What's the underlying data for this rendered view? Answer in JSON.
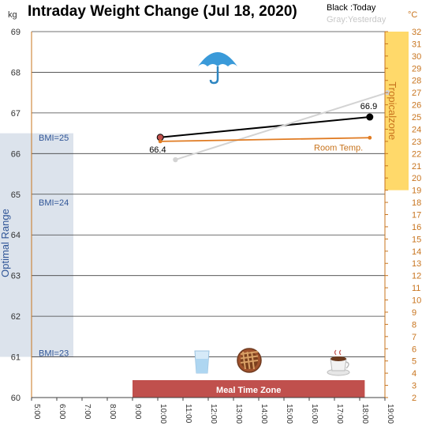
{
  "chart_data": {
    "type": "line",
    "title": "Intraday Weight Change (Jul 18, 2020)",
    "legend": {
      "today": "Black :Today",
      "yesterday": "Gray:Yesterday"
    },
    "y_left": {
      "unit": "kg",
      "min": 60,
      "max": 69,
      "ticks": [
        "60",
        "61",
        "62",
        "63",
        "64",
        "65",
        "66",
        "67",
        "68",
        "69"
      ]
    },
    "y_right": {
      "unit": "°C",
      "min": 2,
      "max": 32,
      "ticks": [
        "2",
        "3",
        "4",
        "5",
        "6",
        "7",
        "8",
        "9",
        "10",
        "11",
        "12",
        "13",
        "14",
        "15",
        "16",
        "17",
        "18",
        "19",
        "20",
        "21",
        "22",
        "23",
        "24",
        "25",
        "26",
        "27",
        "28",
        "29",
        "30",
        "31",
        "32"
      ]
    },
    "x": {
      "min": 5,
      "max": 19,
      "ticks": [
        "5:00",
        "6:00",
        "7:00",
        "8:00",
        "9:00",
        "10:00",
        "11:00",
        "12:00",
        "13:00",
        "14:00",
        "15:00",
        "16:00",
        "17:00",
        "18:00",
        "19:00"
      ]
    },
    "series": [
      {
        "name": "Today",
        "color": "#000000",
        "x": [
          10.1,
          18.4
        ],
        "y": [
          66.4,
          66.9
        ],
        "labels": [
          "66.4",
          "66.9"
        ]
      },
      {
        "name": "Yesterday",
        "color": "#d3d3d3",
        "x": [
          10.7,
          19.1
        ],
        "y": [
          65.85,
          67.5
        ]
      },
      {
        "name": "Room Temp.",
        "color": "#e07b22",
        "axis": "right",
        "x": [
          10.1,
          18.4
        ],
        "y": [
          23.0,
          23.3
        ]
      }
    ],
    "annotations": {
      "optimal_range": {
        "label": "Optimal Range",
        "y_from": 61,
        "y_to": 66.5,
        "color": "#dce3ec",
        "bmi_lines": [
          {
            "label": "BMI=25"
          },
          {
            "label": "BMI=24"
          },
          {
            "label": "BMI=23"
          }
        ]
      },
      "tropical_zone": {
        "label": "Tropicalzone",
        "t_from": 19,
        "t_to": 32,
        "color": "#ffd96a"
      },
      "meal_time_zone": {
        "label": "Meal Time Zone",
        "x_from": 9.0,
        "x_to": 18.2,
        "color": "#c0504d"
      },
      "room_temp_label": "Room Temp."
    },
    "icons": [
      "umbrella-icon",
      "water-glass-icon",
      "pie-icon",
      "coffee-cup-icon"
    ],
    "grid": true
  }
}
